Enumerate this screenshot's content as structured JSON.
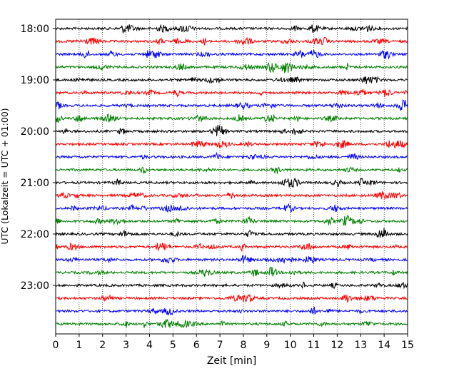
{
  "chart_data": {
    "type": "line",
    "xlabel": "Zeit  [min]",
    "ylabel": "UTC (Lokalzeit = UTC + 01:00)",
    "xlim": [
      0,
      15
    ],
    "x_ticks": [
      0,
      1,
      2,
      3,
      4,
      5,
      6,
      7,
      8,
      9,
      10,
      11,
      12,
      13,
      14,
      15
    ],
    "x_tick_labels": [
      "0",
      "1",
      "2",
      "3",
      "4",
      "5",
      "6",
      "7",
      "8",
      "9",
      "10",
      "11",
      "12",
      "13",
      "14",
      "15"
    ],
    "y_tick_labels": [
      "18:00",
      "19:00",
      "20:00",
      "21:00",
      "22:00",
      "23:00"
    ],
    "y_tick_traces": [
      0,
      4,
      8,
      12,
      16,
      20
    ],
    "trace_interval_minutes": 15,
    "grid": "vertical-dotted",
    "trace_colors": [
      "#000000",
      "#ff0000",
      "#0000ff",
      "#008000"
    ],
    "traces": [
      {
        "start": "18:00",
        "color": "#000000"
      },
      {
        "start": "18:15",
        "color": "#ff0000"
      },
      {
        "start": "18:30",
        "color": "#0000ff"
      },
      {
        "start": "18:45",
        "color": "#008000"
      },
      {
        "start": "19:00",
        "color": "#000000"
      },
      {
        "start": "19:15",
        "color": "#ff0000"
      },
      {
        "start": "19:30",
        "color": "#0000ff"
      },
      {
        "start": "19:45",
        "color": "#008000"
      },
      {
        "start": "20:00",
        "color": "#000000"
      },
      {
        "start": "20:15",
        "color": "#ff0000"
      },
      {
        "start": "20:30",
        "color": "#0000ff"
      },
      {
        "start": "20:45",
        "color": "#008000"
      },
      {
        "start": "21:00",
        "color": "#000000"
      },
      {
        "start": "21:15",
        "color": "#ff0000"
      },
      {
        "start": "21:30",
        "color": "#0000ff"
      },
      {
        "start": "21:45",
        "color": "#008000"
      },
      {
        "start": "22:00",
        "color": "#000000"
      },
      {
        "start": "22:15",
        "color": "#ff0000"
      },
      {
        "start": "22:30",
        "color": "#0000ff"
      },
      {
        "start": "22:45",
        "color": "#008000"
      },
      {
        "start": "23:00",
        "color": "#000000"
      },
      {
        "start": "23:15",
        "color": "#ff0000"
      },
      {
        "start": "23:30",
        "color": "#0000ff"
      },
      {
        "start": "23:45",
        "color": "#008000"
      }
    ]
  }
}
